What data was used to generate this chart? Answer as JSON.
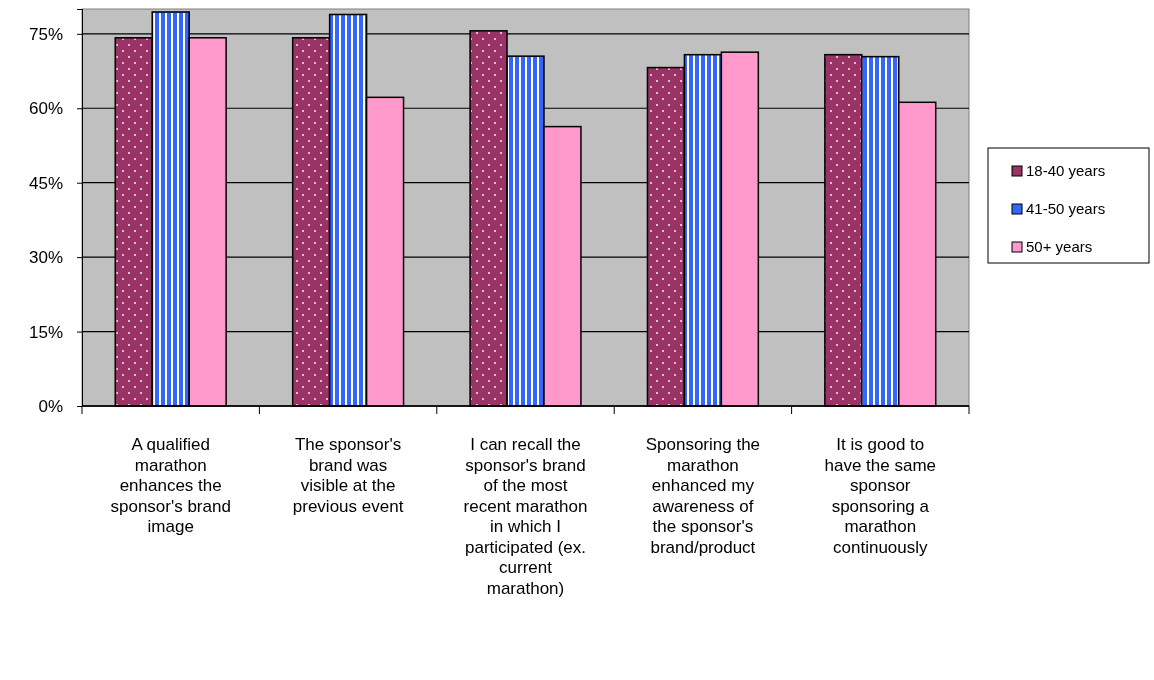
{
  "chart_data": {
    "type": "bar",
    "categories": [
      "A qualified marathon enhances the sponsor's brand image",
      "The sponsor's brand was visible at the previous event",
      "I can recall the sponsor's brand of the most recent marathon in which I participated (ex. current marathon)",
      "Sponsoring the marathon enhanced my awareness of the sponsor's brand/product",
      "It is good to have the same sponsor sponsoring a marathon continuously"
    ],
    "series": [
      {
        "name": "18-40 years",
        "color": "#993366",
        "values": [
          74.2,
          74.2,
          75.6,
          68.2,
          70.8
        ]
      },
      {
        "name": "41-50 years",
        "color": "#3366ff",
        "values": [
          79.4,
          78.9,
          70.5,
          70.8,
          70.4
        ]
      },
      {
        "name": "50+ years",
        "color": "#ff99cc",
        "values": [
          74.2,
          62.2,
          56.3,
          71.3,
          61.2
        ]
      }
    ],
    "ylim": [
      0,
      80
    ],
    "yticks": [
      {
        "value": 0,
        "label": "0%"
      },
      {
        "value": 15,
        "label": "15%"
      },
      {
        "value": 30,
        "label": "30%"
      },
      {
        "value": 45,
        "label": "45%"
      },
      {
        "value": 60,
        "label": "60%"
      },
      {
        "value": 75,
        "label": "75%"
      }
    ],
    "grid": "y",
    "legend": "right"
  }
}
